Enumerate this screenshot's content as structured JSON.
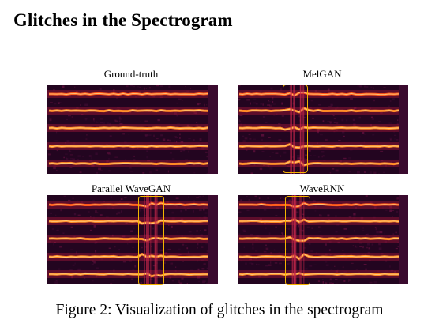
{
  "title": "Glitches in the Spectrogram",
  "panels": [
    {
      "label": "Ground-truth",
      "glitch": false
    },
    {
      "label": "MelGAN",
      "glitch": true
    },
    {
      "label": "Parallel WaveGAN",
      "glitch": true
    },
    {
      "label": "WaveRNN",
      "glitch": true
    }
  ],
  "caption": "Figure 2: Visualization of glitches in the spectrogram",
  "colors": {
    "background": "#1e0418",
    "harmonic": "#ff7a1a",
    "highlight": "#f4b400"
  }
}
